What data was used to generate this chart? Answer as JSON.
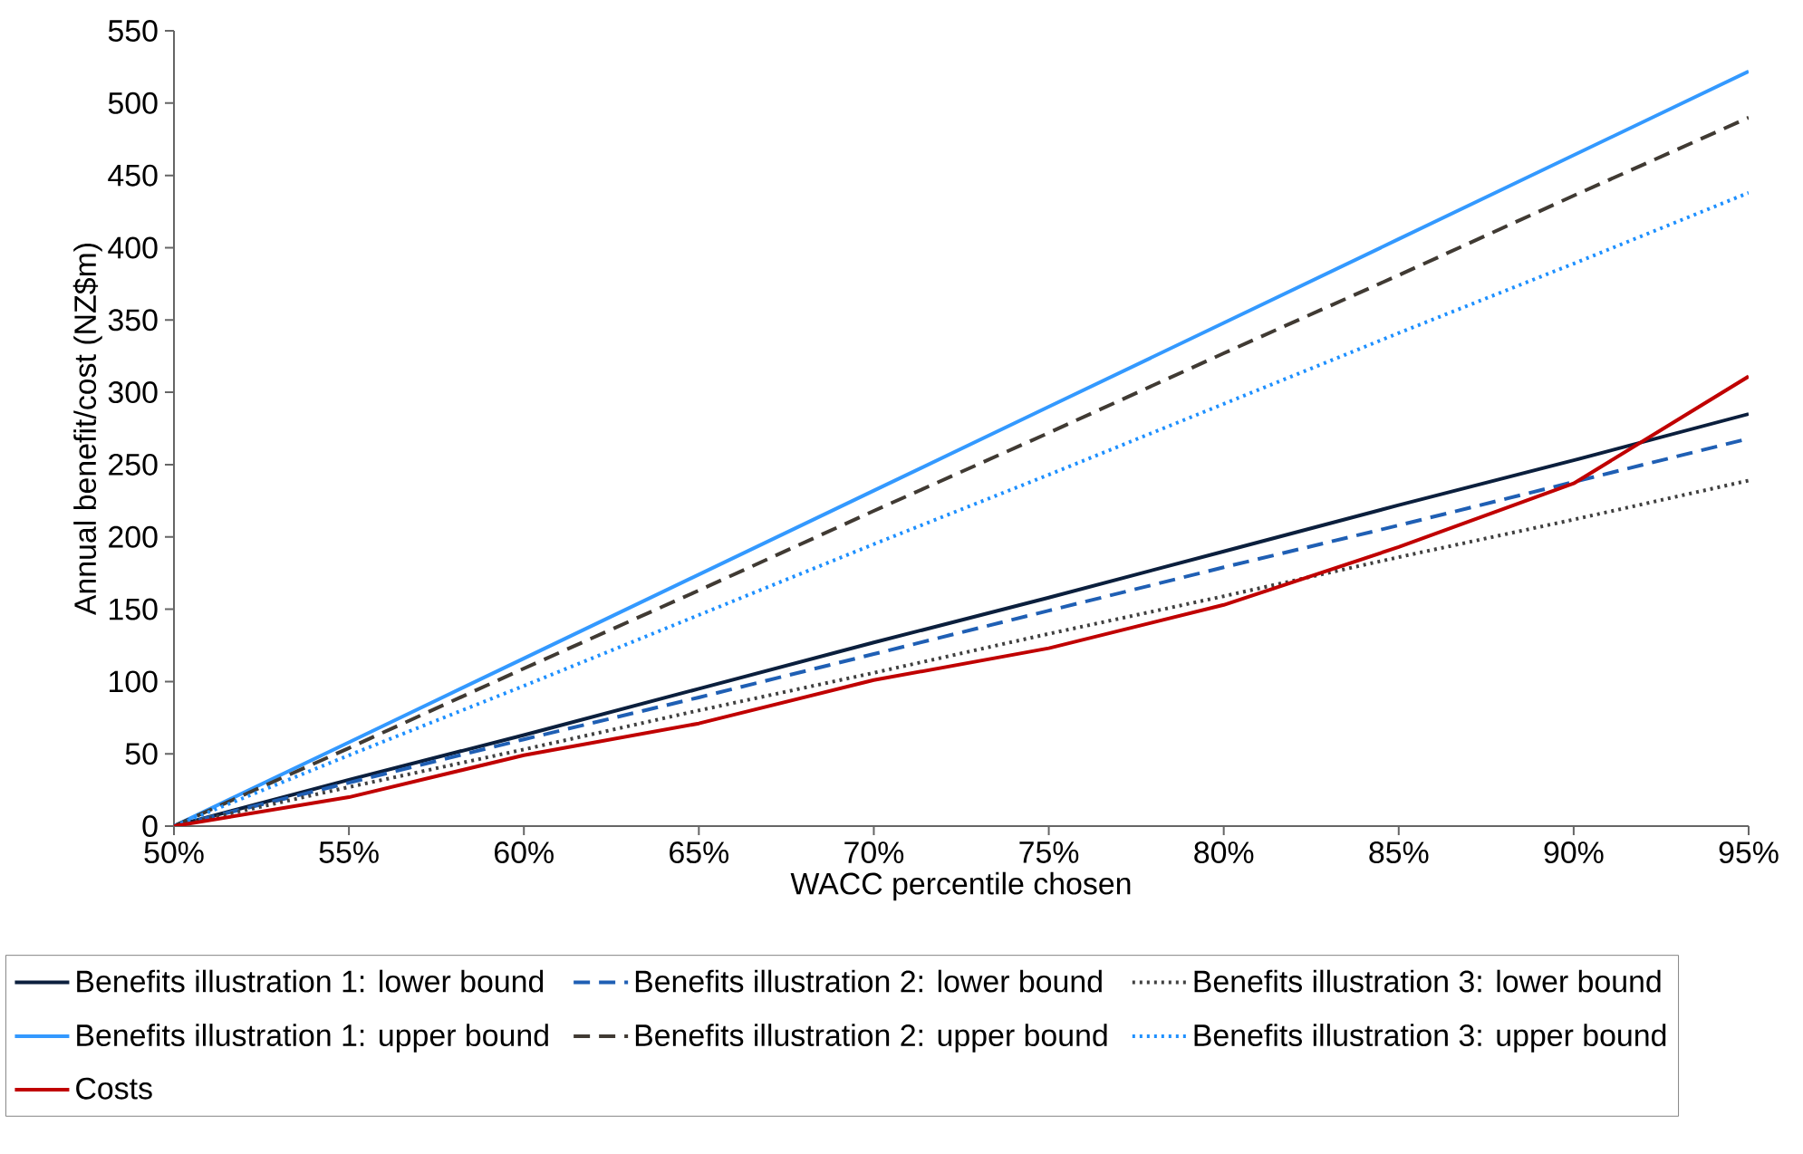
{
  "chart_data": {
    "type": "line",
    "xlabel": "WACC percentile chosen",
    "ylabel": "Annual benefit/cost (NZ$m)",
    "x": [
      50,
      55,
      60,
      65,
      70,
      75,
      80,
      85,
      90,
      95
    ],
    "xlim": [
      50,
      95
    ],
    "ylim": [
      0,
      550
    ],
    "xticks": [
      {
        "value": 50,
        "label": "50%"
      },
      {
        "value": 55,
        "label": "55%"
      },
      {
        "value": 60,
        "label": "60%"
      },
      {
        "value": 65,
        "label": "65%"
      },
      {
        "value": 70,
        "label": "70%"
      },
      {
        "value": 75,
        "label": "75%"
      },
      {
        "value": 80,
        "label": "80%"
      },
      {
        "value": 85,
        "label": "85%"
      },
      {
        "value": 90,
        "label": "90%"
      },
      {
        "value": 95,
        "label": "95%"
      }
    ],
    "yticks": [
      0,
      50,
      100,
      150,
      200,
      250,
      300,
      350,
      400,
      450,
      500,
      550
    ],
    "grid": false,
    "legend": "bottom",
    "series": [
      {
        "name": "Benefits illustration 1: lower bound",
        "color": "#0b1f3d",
        "line_style": "solid",
        "values": [
          0,
          32,
          63,
          95,
          127,
          158,
          190,
          222,
          253,
          285
        ]
      },
      {
        "name": "Benefits illustration 2: lower bound",
        "color": "#1f5fb4",
        "line_style": "dashed",
        "values": [
          0,
          30,
          60,
          89,
          119,
          149,
          179,
          208,
          238,
          268
        ]
      },
      {
        "name": "Benefits illustration 3: lower bound",
        "color": "#404040",
        "line_style": "dotted",
        "values": [
          0,
          27,
          53,
          80,
          106,
          133,
          159,
          186,
          212,
          239
        ]
      },
      {
        "name": "Benefits illustration 1: upper bound",
        "color": "#3399ff",
        "line_style": "solid",
        "values": [
          0,
          58,
          116,
          174,
          232,
          290,
          348,
          406,
          464,
          522
        ]
      },
      {
        "name": "Benefits illustration 2: upper bound",
        "color": "#403a33",
        "line_style": "dashed",
        "values": [
          0,
          54,
          109,
          163,
          218,
          272,
          327,
          381,
          436,
          490
        ]
      },
      {
        "name": "Benefits illustration 3: upper bound",
        "color": "#1e90ff",
        "line_style": "dotted",
        "values": [
          0,
          49,
          97,
          146,
          195,
          243,
          292,
          341,
          389,
          438
        ]
      },
      {
        "name": "Costs",
        "color": "#c00000",
        "line_style": "solid",
        "values": [
          0,
          20,
          49,
          71,
          101,
          123,
          153,
          193,
          237,
          311
        ]
      }
    ]
  }
}
